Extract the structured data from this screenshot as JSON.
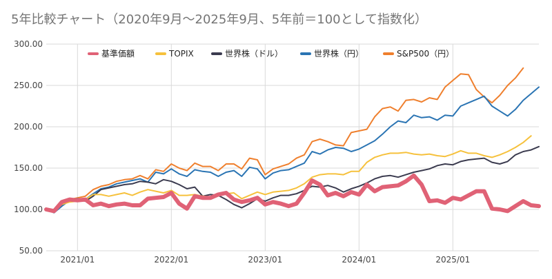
{
  "chart_data": {
    "type": "line",
    "title": "5年比較チャート（2020年9月〜2025年9月、5年前＝100として指数化）",
    "x_start": "2020-09",
    "x_ticks": [
      "2021/01",
      "2022/01",
      "2023/01",
      "2024/01",
      "2025/01"
    ],
    "y_ticks": [
      "300.00",
      "250.00",
      "200.00",
      "150.00",
      "100.00",
      "50.00"
    ],
    "ylim": [
      50,
      300
    ],
    "grid": true,
    "legend_position": "top",
    "series": [
      {
        "name": "基準価額",
        "color": "#e06276",
        "values": [
          100,
          98,
          109,
          112,
          111,
          112,
          105,
          107,
          104,
          106,
          107,
          105,
          105,
          113,
          114,
          115,
          120,
          107,
          101,
          116,
          114,
          114,
          118,
          120,
          112,
          109,
          111,
          114,
          106,
          109,
          107,
          104,
          107,
          120,
          135,
          130,
          117,
          120,
          116,
          121,
          118,
          130,
          122,
          127,
          128,
          129,
          134,
          141,
          130,
          110,
          111,
          108,
          114,
          112,
          117,
          122,
          122,
          101,
          100,
          98,
          104,
          110,
          105,
          104
        ]
      },
      {
        "name": "TOPIX",
        "color": "#f6c13c",
        "values": [
          100,
          97,
          106,
          109,
          110,
          112,
          118,
          118,
          116,
          118,
          120,
          117,
          121,
          124,
          122,
          120,
          123,
          117,
          117,
          118,
          116,
          115,
          118,
          119,
          120,
          113,
          117,
          121,
          118,
          121,
          122,
          123,
          126,
          131,
          139,
          142,
          143,
          143,
          142,
          146,
          146,
          157,
          163,
          166,
          168,
          168,
          169,
          167,
          166,
          167,
          165,
          164,
          167,
          171,
          168,
          168,
          165,
          163,
          166,
          170,
          175,
          181,
          189
        ]
      },
      {
        "name": "世界株（ドル）",
        "color": "#3b3b4f",
        "values": [
          100,
          97,
          106,
          113,
          112,
          110,
          116,
          124,
          126,
          128,
          130,
          131,
          134,
          133,
          131,
          136,
          134,
          130,
          125,
          127,
          116,
          118,
          117,
          112,
          106,
          102,
          107,
          113,
          110,
          114,
          117,
          117,
          119,
          123,
          128,
          127,
          129,
          126,
          121,
          125,
          128,
          132,
          137,
          140,
          141,
          139,
          142,
          145,
          147,
          149,
          153,
          155,
          154,
          158,
          160,
          161,
          162,
          157,
          155,
          158,
          166,
          170,
          172,
          176
        ]
      },
      {
        "name": "世界株（円）",
        "color": "#2a74b3",
        "values": [
          100,
          96,
          104,
          111,
          113,
          112,
          119,
          125,
          127,
          131,
          133,
          135,
          137,
          133,
          145,
          143,
          149,
          143,
          140,
          148,
          146,
          145,
          140,
          145,
          147,
          140,
          151,
          149,
          137,
          144,
          147,
          148,
          152,
          156,
          170,
          167,
          172,
          175,
          174,
          170,
          173,
          178,
          183,
          191,
          200,
          207,
          205,
          214,
          211,
          212,
          208,
          214,
          213,
          225,
          229,
          233,
          237,
          225,
          219,
          213,
          221,
          232,
          240,
          248
        ]
      },
      {
        "name": "S&P500（円）",
        "color": "#ef7f2d",
        "values": [
          100,
          97,
          106,
          112,
          114,
          116,
          124,
          128,
          130,
          134,
          136,
          137,
          141,
          137,
          148,
          146,
          155,
          150,
          147,
          156,
          152,
          152,
          147,
          155,
          155,
          149,
          162,
          160,
          142,
          149,
          152,
          155,
          162,
          166,
          182,
          185,
          182,
          178,
          177,
          193,
          195,
          197,
          212,
          222,
          224,
          219,
          232,
          233,
          230,
          235,
          233,
          248,
          256,
          264,
          263,
          245,
          236,
          229,
          238,
          250,
          259,
          271
        ]
      }
    ]
  }
}
